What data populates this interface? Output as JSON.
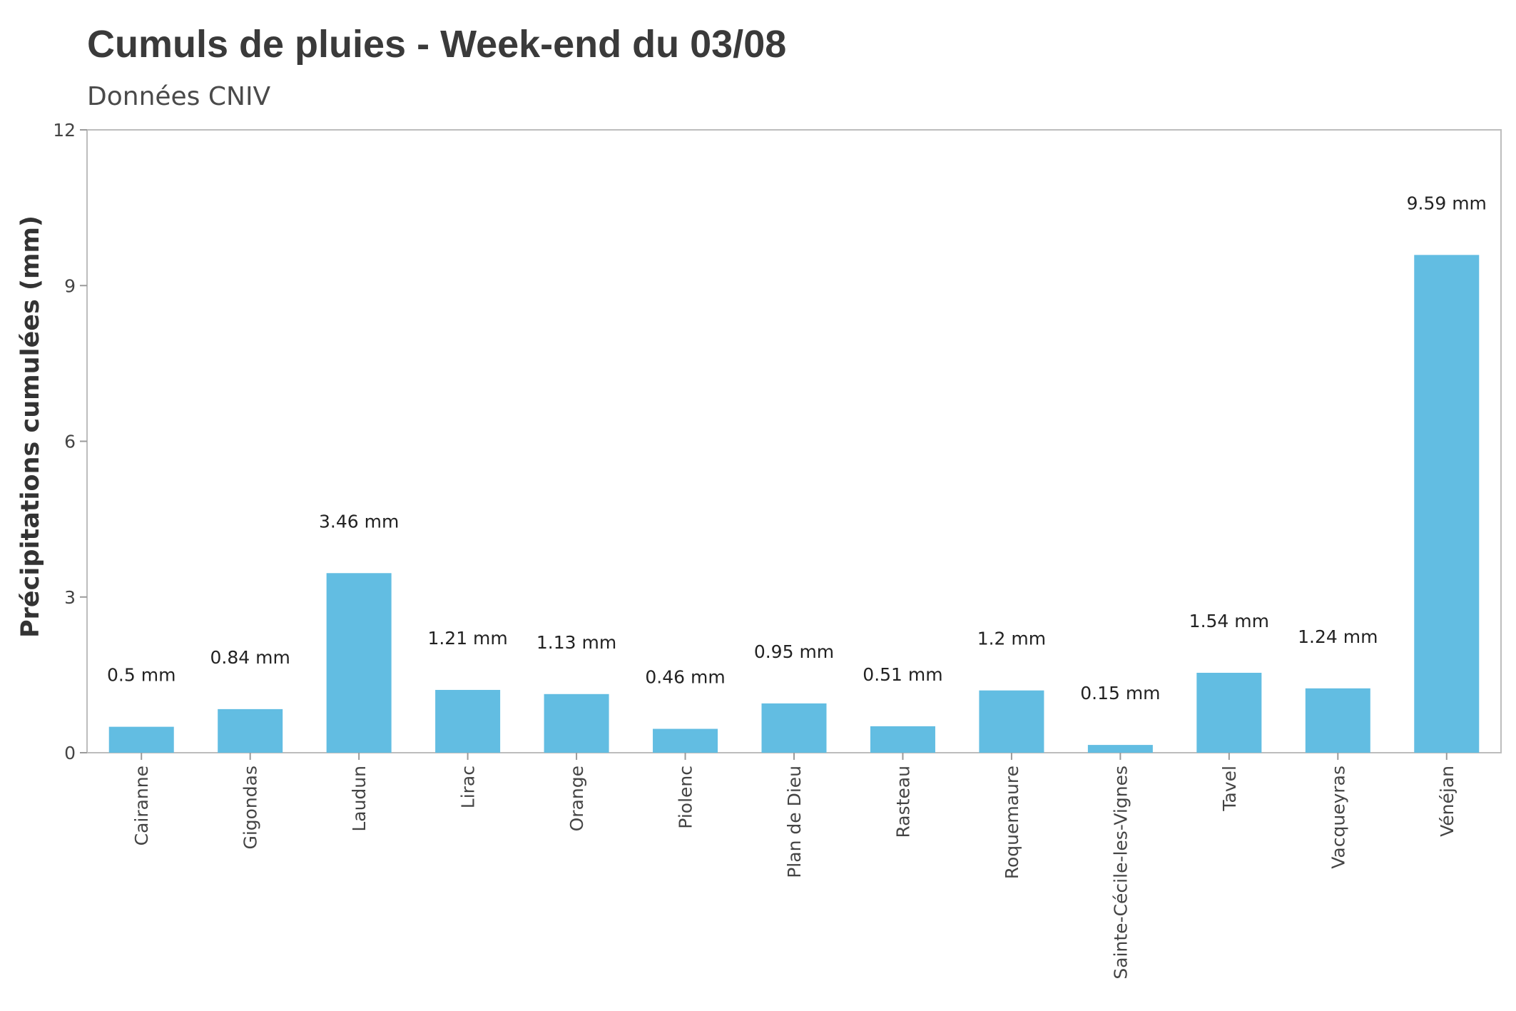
{
  "colors": {
    "bar": "#62bde2",
    "frame": "#bdbdbd",
    "tick": "#9a9a9a"
  },
  "chart_data": {
    "type": "bar",
    "title": "Cumuls de pluies  - Week-end du 03/08",
    "subtitle": "Données CNIV",
    "xlabel": "",
    "ylabel": "Précipitations cumulées (mm)",
    "ylim": [
      0,
      12
    ],
    "yticks": [
      0,
      3,
      6,
      9,
      12
    ],
    "grid": false,
    "categories": [
      "Cairanne",
      "Gigondas",
      "Laudun",
      "Lirac",
      "Orange",
      "Piolenc",
      "Plan de Dieu",
      "Rasteau",
      "Roquemaure",
      "Sainte-Cécile-les-Vignes",
      "Tavel",
      "Vacqueyras",
      "Vénéjan"
    ],
    "values": [
      0.5,
      0.84,
      3.46,
      1.21,
      1.13,
      0.46,
      0.95,
      0.51,
      1.2,
      0.15,
      1.54,
      1.24,
      9.59
    ],
    "labels": [
      "0.5 mm",
      "0.84 mm",
      "3.46 mm",
      "1.21 mm",
      "1.13 mm",
      "0.46 mm",
      "0.95 mm",
      "0.51 mm",
      "1.2 mm",
      "0.15 mm",
      "1.54 mm",
      "1.24 mm",
      "9.59 mm"
    ]
  }
}
